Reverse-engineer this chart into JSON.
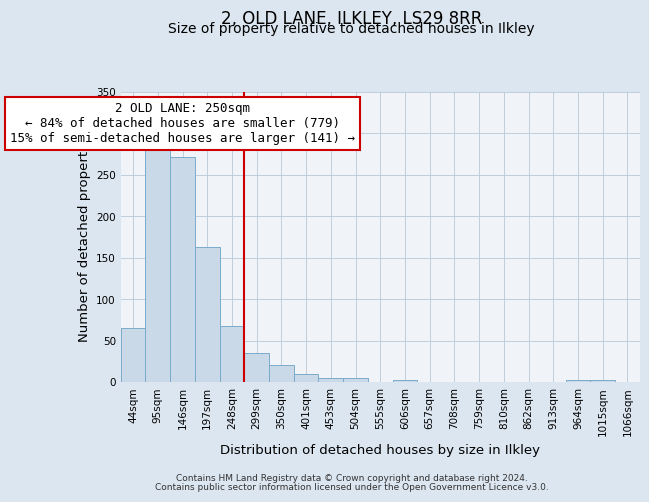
{
  "title": "2, OLD LANE, ILKLEY, LS29 8RR",
  "subtitle": "Size of property relative to detached houses in Ilkley",
  "xlabel": "Distribution of detached houses by size in Ilkley",
  "ylabel": "Number of detached properties",
  "footer_lines": [
    "Contains HM Land Registry data © Crown copyright and database right 2024.",
    "Contains public sector information licensed under the Open Government Licence v3.0."
  ],
  "bin_labels": [
    "44sqm",
    "95sqm",
    "146sqm",
    "197sqm",
    "248sqm",
    "299sqm",
    "350sqm",
    "401sqm",
    "453sqm",
    "504sqm",
    "555sqm",
    "606sqm",
    "657sqm",
    "708sqm",
    "759sqm",
    "810sqm",
    "862sqm",
    "913sqm",
    "964sqm",
    "1015sqm",
    "1066sqm"
  ],
  "bar_values": [
    65,
    281,
    272,
    163,
    68,
    35,
    21,
    10,
    5,
    5,
    0,
    2,
    0,
    0,
    0,
    0,
    0,
    0,
    2,
    2,
    0
  ],
  "bar_color": "#c9d9e8",
  "bar_edgecolor": "#7aabcc",
  "vline_x": 4.5,
  "vline_color": "#cc0000",
  "annotation_line1": "2 OLD LANE: 250sqm",
  "annotation_line2": "← 84% of detached houses are smaller (779)",
  "annotation_line3": "15% of semi-detached houses are larger (141) →",
  "annotation_box_edgecolor": "#cc0000",
  "annotation_box_facecolor": "#ffffff",
  "ylim": [
    0,
    350
  ],
  "yticks": [
    0,
    50,
    100,
    150,
    200,
    250,
    300,
    350
  ],
  "bg_color": "#dce6f0",
  "plot_bg_color": "#f0f4f8",
  "grid_color": "#b8c8d8",
  "title_fontsize": 12,
  "subtitle_fontsize": 10,
  "axis_label_fontsize": 9.5,
  "tick_fontsize": 7.5,
  "annotation_fontsize": 9,
  "footer_fontsize": 6.5
}
